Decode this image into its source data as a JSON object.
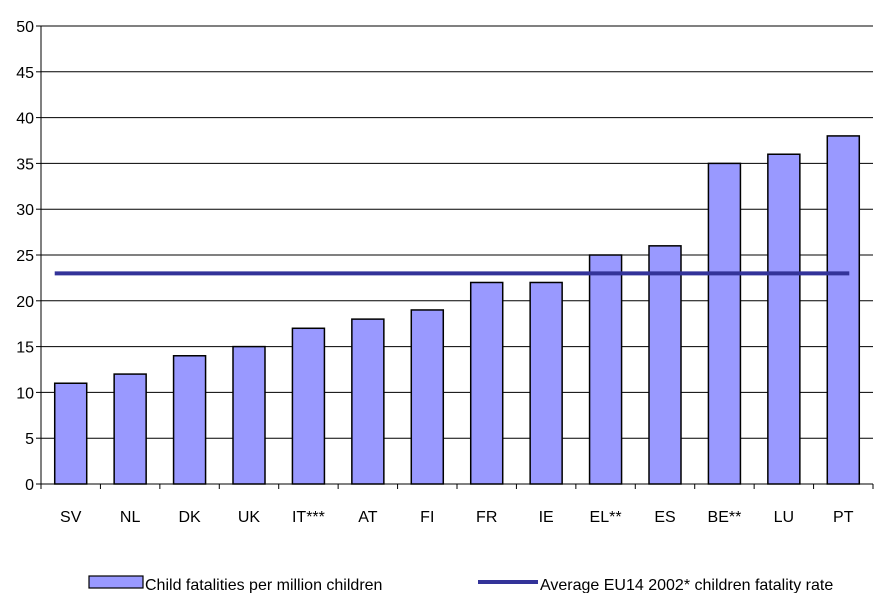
{
  "chart_data": {
    "type": "bar",
    "categories": [
      "SV",
      "NL",
      "DK",
      "UK",
      "IT***",
      "AT",
      "FI",
      "FR",
      "IE",
      "EL**",
      "ES",
      "BE**",
      "LU",
      "PT"
    ],
    "series": [
      {
        "name": "Child fatalities per million children",
        "type": "bar",
        "color": "#9999ff",
        "values": [
          11,
          12,
          14,
          15,
          17,
          18,
          19,
          22,
          22,
          25,
          26,
          35,
          36,
          38
        ]
      },
      {
        "name": "Average EU14 2002* children fatality rate",
        "type": "line",
        "color": "#333399",
        "value": 23
      }
    ],
    "yticks": [
      "0",
      "5",
      "10",
      "15",
      "20",
      "25",
      "30",
      "35",
      "40",
      "45",
      "50"
    ],
    "ylim": [
      0,
      50
    ],
    "grid": true,
    "legend": "bottom"
  }
}
